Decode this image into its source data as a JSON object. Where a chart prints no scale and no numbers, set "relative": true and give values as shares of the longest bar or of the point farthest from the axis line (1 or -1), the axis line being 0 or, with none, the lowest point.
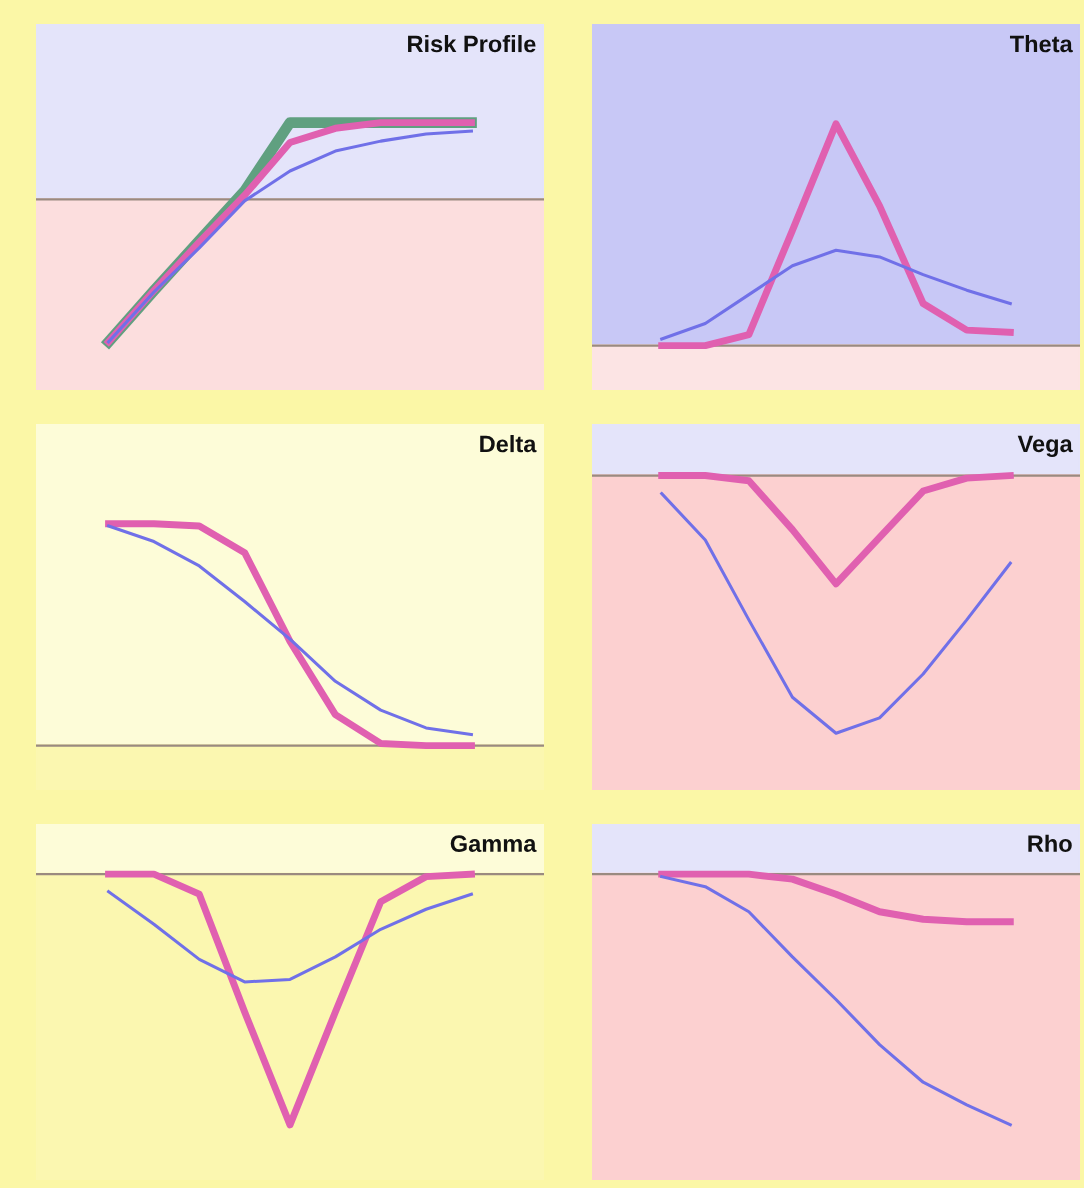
{
  "chart_data": [
    {
      "type": "line",
      "title": "Risk Profile",
      "relative": true,
      "categories": [
        null,
        null,
        null,
        null,
        null,
        null,
        null,
        null,
        null
      ],
      "series": [
        {
          "color": "#60a080",
          "values": [
            -1,
            -0.64,
            -0.29,
            0.06,
            0.54,
            0.54,
            0.54,
            0.54,
            0.54
          ]
        },
        {
          "color": "#e060b0",
          "values": [
            -1,
            -0.64,
            -0.3,
            0.03,
            0.4,
            0.5,
            0.54,
            0.54,
            0.54
          ]
        },
        {
          "color": "#7070e8",
          "values": [
            -1,
            -0.65,
            -0.34,
            -0.01,
            0.2,
            0.34,
            0.41,
            0.46,
            0.48
          ]
        }
      ]
    },
    {
      "type": "line",
      "title": "Theta",
      "relative": true,
      "categories": [
        null,
        null,
        null,
        null,
        null,
        null,
        null,
        null,
        null
      ],
      "series": [
        {
          "color": "#e060b0",
          "values": [
            0,
            0,
            0.05,
            0.52,
            1,
            0.63,
            0.19,
            0.07,
            0.06
          ]
        },
        {
          "color": "#7070e8",
          "values": [
            0.03,
            0.1,
            0.23,
            0.36,
            0.43,
            0.4,
            0.32,
            0.25,
            0.19
          ]
        }
      ]
    },
    {
      "type": "line",
      "title": "Delta",
      "relative": true,
      "categories": [
        null,
        null,
        null,
        null,
        null,
        null,
        null,
        null,
        null
      ],
      "series": [
        {
          "color": "#e060b0",
          "values": [
            1,
            1,
            0.99,
            0.87,
            0.47,
            0.14,
            0.01,
            0,
            0
          ]
        },
        {
          "color": "#7070e8",
          "values": [
            0.99,
            0.92,
            0.81,
            0.65,
            0.48,
            0.29,
            0.16,
            0.08,
            0.05
          ]
        }
      ]
    },
    {
      "type": "line",
      "title": "Vega",
      "relative": true,
      "categories": [
        null,
        null,
        null,
        null,
        null,
        null,
        null,
        null,
        null
      ],
      "series": [
        {
          "color": "#e060b0",
          "values": [
            0,
            0,
            -0.02,
            -0.21,
            -0.42,
            -0.24,
            -0.06,
            -0.01,
            0
          ]
        },
        {
          "color": "#7070e8",
          "values": [
            -0.07,
            -0.25,
            -0.56,
            -0.86,
            -1,
            -0.94,
            -0.77,
            -0.56,
            -0.34
          ]
        }
      ]
    },
    {
      "type": "line",
      "title": "Gamma",
      "relative": true,
      "categories": [
        null,
        null,
        null,
        null,
        null,
        null,
        null,
        null,
        null
      ],
      "series": [
        {
          "color": "#e060b0",
          "values": [
            0,
            0,
            -0.08,
            -0.55,
            -1,
            -0.55,
            -0.11,
            -0.01,
            0
          ]
        },
        {
          "color": "#7070e8",
          "values": [
            -0.07,
            -0.2,
            -0.34,
            -0.43,
            -0.42,
            -0.33,
            -0.22,
            -0.14,
            -0.08
          ]
        }
      ]
    },
    {
      "type": "line",
      "title": "Rho",
      "relative": true,
      "categories": [
        null,
        null,
        null,
        null,
        null,
        null,
        null,
        null,
        null
      ],
      "series": [
        {
          "color": "#e060b0",
          "values": [
            0,
            0,
            0,
            -0.02,
            -0.08,
            -0.15,
            -0.18,
            -0.19,
            -0.19
          ]
        },
        {
          "color": "#7070e8",
          "values": [
            -0.01,
            -0.05,
            -0.15,
            -0.33,
            -0.5,
            -0.68,
            -0.83,
            -0.92,
            -1
          ]
        }
      ]
    }
  ]
}
